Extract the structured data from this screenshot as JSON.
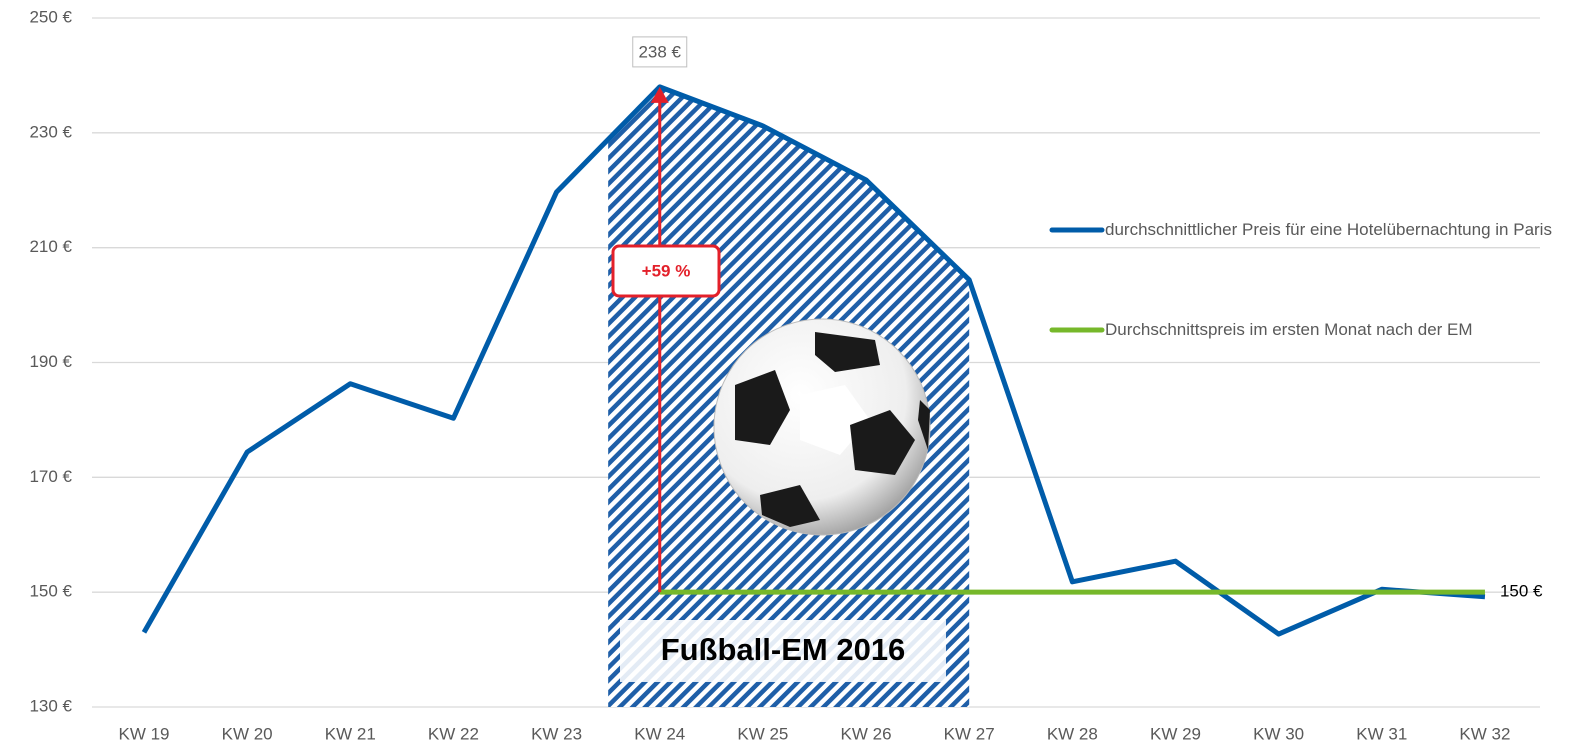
{
  "chart_data": {
    "type": "line",
    "categories": [
      "KW 19",
      "KW 20",
      "KW 21",
      "KW 22",
      "KW 23",
      "KW 24",
      "KW 25",
      "KW 26",
      "KW 27",
      "KW 28",
      "KW 29",
      "KW 30",
      "KW 31",
      "KW 32"
    ],
    "series": [
      {
        "name": "durchschnittlicher Preis für eine Hotelübernachtung in Paris",
        "color": "#005ca9",
        "values": [
          143,
          174.4,
          186.3,
          180.3,
          219.7,
          238,
          231.2,
          221.8,
          204.4,
          151.8,
          155.4,
          142.7,
          150.5,
          149.2
        ],
        "value_labels": [
          null,
          null,
          null,
          null,
          null,
          "238 €",
          null,
          null,
          null,
          null,
          null,
          null,
          null,
          null
        ]
      },
      {
        "name": "Durchschnittspreis im ersten Monat nach der EM",
        "color": "#76b82a",
        "values": [
          null,
          null,
          null,
          null,
          null,
          150,
          150,
          150,
          150,
          150,
          150,
          150,
          150,
          150
        ],
        "value_labels": [
          null,
          null,
          null,
          null,
          null,
          null,
          null,
          null,
          null,
          null,
          null,
          null,
          null,
          "150 €"
        ]
      }
    ],
    "annotations": {
      "change": "+59 %",
      "event": "Fußball-EM 2016"
    },
    "ylim": [
      130,
      250
    ],
    "yticks": [
      {
        "value": 130,
        "label": "130 €"
      },
      {
        "value": 150,
        "label": "150 €"
      },
      {
        "value": 170,
        "label": "170 €"
      },
      {
        "value": 190,
        "label": "190 €"
      },
      {
        "value": 210,
        "label": "210 €"
      },
      {
        "value": 230,
        "label": "230 €"
      },
      {
        "value": 250,
        "label": "250 €"
      }
    ],
    "grid": true
  }
}
